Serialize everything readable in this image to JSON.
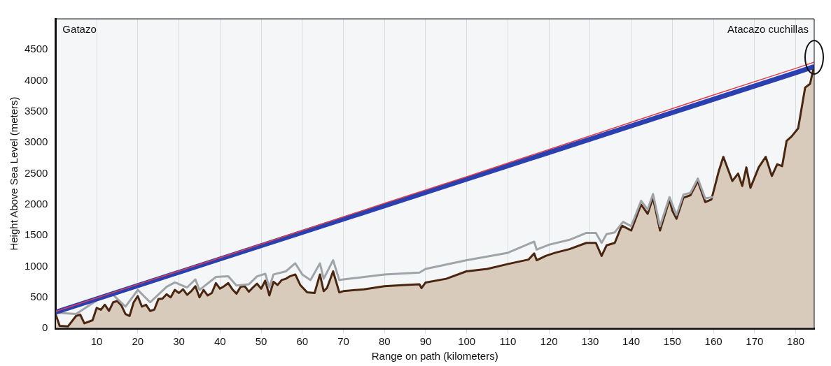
{
  "chart_data": {
    "type": "line",
    "xlabel": "Range on path (kilometers)",
    "ylabel": "Height Above Sea Level (meters)",
    "annotations": [
      "Gatazo",
      "Atacazo cuchillas"
    ],
    "xlim": [
      0,
      184.5
    ],
    "xticks": [
      10,
      20,
      30,
      40,
      50,
      60,
      70,
      80,
      90,
      100,
      110,
      120,
      130,
      140,
      150,
      160,
      170,
      180
    ],
    "ylim": [
      0,
      5000
    ],
    "yticks": [
      0,
      500,
      1000,
      1500,
      2000,
      2500,
      3000,
      3500,
      4000,
      4500
    ],
    "grid": "x",
    "legend": false,
    "marker": "none",
    "line_style": "solid",
    "series": [
      {
        "type": "area",
        "color": "#4a2610",
        "x": [
          0,
          1,
          3,
          5,
          6,
          7,
          9,
          10,
          11,
          12,
          13,
          14,
          15,
          16,
          17,
          18,
          19,
          20,
          21,
          22,
          23,
          24,
          25,
          26,
          27,
          28,
          29,
          30,
          31,
          32,
          33,
          34,
          35,
          36,
          37,
          38,
          39,
          40,
          41,
          42,
          43,
          44,
          45,
          46,
          47,
          48,
          49,
          50,
          51,
          52,
          53,
          54,
          55,
          56,
          57,
          58.3,
          59.5,
          61.2,
          63,
          64.3,
          65.2,
          66,
          67.5,
          69,
          70,
          75,
          80,
          85,
          88.5,
          89,
          90,
          95,
          99.9,
          105,
          110.1,
          115,
          116.4,
          117,
          119.2,
          121.5,
          125,
          129.1,
          131.4,
          132.8,
          134,
          136,
          137.7,
          140,
          142.4,
          144,
          145.3,
          147,
          149.3,
          150,
          151,
          152.7,
          154.4,
          156.2,
          158,
          159.5,
          161.3,
          162.4,
          164.6,
          166,
          167,
          168,
          169,
          171,
          172.7,
          174.2,
          175.5,
          176.7,
          177.8,
          179,
          180.6,
          182.3,
          183.5,
          184.5
        ],
        "values": [
          230,
          40,
          30,
          200,
          220,
          80,
          130,
          330,
          300,
          380,
          280,
          420,
          440,
          370,
          230,
          200,
          420,
          520,
          350,
          380,
          280,
          300,
          470,
          480,
          550,
          500,
          620,
          570,
          630,
          540,
          600,
          680,
          500,
          620,
          530,
          570,
          730,
          640,
          680,
          730,
          630,
          560,
          670,
          680,
          590,
          660,
          720,
          640,
          770,
          530,
          750,
          700,
          780,
          800,
          840,
          870,
          700,
          580,
          570,
          870,
          600,
          650,
          920,
          580,
          600,
          630,
          680,
          700,
          710,
          650,
          740,
          800,
          920,
          960,
          1040,
          1110,
          1210,
          1100,
          1170,
          1220,
          1280,
          1380,
          1380,
          1170,
          1340,
          1380,
          1660,
          1580,
          2000,
          1850,
          2110,
          1580,
          2080,
          1900,
          1770,
          2110,
          2150,
          2380,
          2040,
          2080,
          2540,
          2770,
          2380,
          2500,
          2300,
          2600,
          2270,
          2600,
          2770,
          2460,
          2650,
          2620,
          3030,
          3100,
          3230,
          3890,
          3950,
          4250
        ]
      },
      {
        "type": "line",
        "color": "#a0a4a8",
        "x": [
          0,
          5,
          10,
          14,
          17,
          20,
          23,
          27,
          29,
          32,
          34,
          35,
          39,
          42,
          44,
          47,
          49,
          51,
          52,
          53,
          56,
          58.3,
          60,
          62,
          64.3,
          65.2,
          67.5,
          69,
          70,
          80,
          88.5,
          90,
          100,
          110,
          116.4,
          117,
          120,
          125,
          129,
          131.4,
          132.8,
          134,
          136,
          138,
          140,
          142.4,
          144,
          145.3,
          147,
          149.3,
          151,
          152.7,
          154.4,
          156.2,
          158,
          160
        ],
        "values": [
          250,
          230,
          450,
          540,
          350,
          620,
          420,
          670,
          740,
          660,
          790,
          620,
          830,
          840,
          690,
          710,
          840,
          880,
          660,
          870,
          920,
          1050,
          870,
          780,
          1050,
          800,
          1100,
          780,
          790,
          870,
          900,
          960,
          1100,
          1220,
          1400,
          1270,
          1350,
          1430,
          1540,
          1540,
          1380,
          1520,
          1550,
          1720,
          1650,
          2060,
          1920,
          2170,
          1650,
          2120,
          1830,
          2160,
          2190,
          2420,
          2100,
          2120
        ]
      },
      {
        "type": "line",
        "color": "#2a3fb0",
        "x": [
          0,
          20,
          40,
          60,
          80,
          100,
          120,
          140,
          160,
          180,
          184.5
        ],
        "values": [
          260,
          690,
          1120,
          1550,
          1980,
          2410,
          2840,
          3270,
          3700,
          4130,
          4230
        ]
      },
      {
        "type": "line",
        "color": "#e0404a",
        "x": [
          0,
          20,
          40,
          60,
          80,
          100,
          120,
          140,
          160,
          180,
          184.5
        ],
        "values": [
          270,
          710,
          1140,
          1580,
          2020,
          2450,
          2890,
          3330,
          3770,
          4200,
          4300
        ]
      }
    ]
  }
}
